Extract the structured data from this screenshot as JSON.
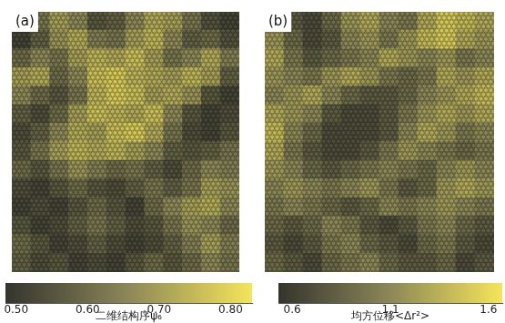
{
  "chart_data": [
    {
      "type": "heatmap",
      "title": "(a)",
      "cells": [
        [
          0.55,
          0.62,
          0.7,
          0.66,
          0.56,
          0.58,
          0.66,
          0.72,
          0.7,
          0.62,
          0.55,
          0.52
        ],
        [
          0.52,
          0.58,
          0.68,
          0.72,
          0.64,
          0.62,
          0.7,
          0.74,
          0.66,
          0.58,
          0.6,
          0.55
        ],
        [
          0.6,
          0.66,
          0.62,
          0.7,
          0.74,
          0.72,
          0.76,
          0.7,
          0.62,
          0.66,
          0.72,
          0.64
        ],
        [
          0.7,
          0.72,
          0.6,
          0.66,
          0.76,
          0.78,
          0.74,
          0.72,
          0.7,
          0.74,
          0.7,
          0.58
        ],
        [
          0.66,
          0.6,
          0.56,
          0.62,
          0.74,
          0.78,
          0.76,
          0.7,
          0.72,
          0.68,
          0.56,
          0.52
        ],
        [
          0.58,
          0.54,
          0.6,
          0.7,
          0.76,
          0.74,
          0.72,
          0.76,
          0.66,
          0.56,
          0.52,
          0.54
        ],
        [
          0.54,
          0.58,
          0.66,
          0.72,
          0.7,
          0.76,
          0.78,
          0.72,
          0.62,
          0.54,
          0.52,
          0.56
        ],
        [
          0.56,
          0.62,
          0.7,
          0.74,
          0.72,
          0.74,
          0.7,
          0.66,
          0.58,
          0.56,
          0.58,
          0.62
        ],
        [
          0.6,
          0.56,
          0.62,
          0.68,
          0.64,
          0.6,
          0.62,
          0.58,
          0.54,
          0.6,
          0.66,
          0.64
        ],
        [
          0.54,
          0.52,
          0.56,
          0.6,
          0.56,
          0.54,
          0.58,
          0.62,
          0.58,
          0.62,
          0.7,
          0.68
        ],
        [
          0.52,
          0.54,
          0.52,
          0.56,
          0.6,
          0.56,
          0.52,
          0.6,
          0.66,
          0.7,
          0.72,
          0.66
        ],
        [
          0.56,
          0.52,
          0.54,
          0.58,
          0.62,
          0.58,
          0.54,
          0.56,
          0.62,
          0.68,
          0.66,
          0.6
        ],
        [
          0.6,
          0.56,
          0.52,
          0.54,
          0.58,
          0.54,
          0.52,
          0.54,
          0.58,
          0.64,
          0.7,
          0.64
        ],
        [
          0.58,
          0.54,
          0.56,
          0.52,
          0.54,
          0.52,
          0.56,
          0.6,
          0.56,
          0.6,
          0.66,
          0.62
        ]
      ],
      "colorbar": {
        "title": "二维结构序ψ₆",
        "range": [
          0.485,
          0.83
        ],
        "ticks": [
          {
            "value": 0.5,
            "label": "0.50"
          },
          {
            "value": 0.6,
            "label": "0.60"
          },
          {
            "value": 0.7,
            "label": "0.70"
          },
          {
            "value": 0.8,
            "label": "0.80"
          }
        ]
      }
    },
    {
      "type": "heatmap",
      "title": "(b)",
      "cells": [
        [
          1.1,
          0.8,
          0.7,
          0.9,
          1.2,
          1.3,
          1.1,
          1.0,
          1.3,
          1.5,
          1.4,
          1.3
        ],
        [
          1.2,
          0.9,
          0.7,
          0.8,
          1.1,
          1.2,
          1.0,
          1.2,
          1.4,
          1.5,
          1.3,
          1.2
        ],
        [
          1.3,
          1.0,
          0.8,
          0.9,
          1.0,
          1.1,
          1.3,
          1.2,
          1.1,
          1.2,
          1.0,
          1.1
        ],
        [
          1.2,
          1.1,
          1.0,
          1.2,
          1.3,
          1.2,
          1.0,
          0.9,
          1.0,
          1.3,
          1.2,
          1.3
        ],
        [
          1.1,
          1.2,
          1.3,
          1.1,
          0.9,
          0.8,
          0.8,
          0.9,
          1.1,
          1.2,
          1.3,
          1.4
        ],
        [
          1.3,
          1.2,
          1.1,
          0.8,
          0.7,
          0.7,
          0.8,
          1.0,
          1.2,
          1.3,
          1.2,
          1.3
        ],
        [
          1.4,
          1.1,
          0.9,
          0.7,
          0.7,
          0.7,
          0.8,
          1.1,
          1.3,
          1.2,
          1.0,
          1.1
        ],
        [
          1.3,
          1.0,
          0.8,
          0.7,
          0.7,
          0.8,
          1.0,
          1.2,
          1.1,
          1.0,
          0.9,
          1.0
        ],
        [
          1.2,
          1.1,
          0.9,
          0.8,
          0.9,
          1.0,
          1.1,
          1.0,
          0.9,
          1.1,
          1.2,
          1.1
        ],
        [
          1.1,
          1.2,
          1.1,
          1.0,
          1.1,
          1.2,
          1.0,
          0.8,
          0.9,
          1.2,
          1.3,
          1.2
        ],
        [
          1.0,
          1.1,
          1.0,
          0.9,
          0.8,
          0.9,
          1.1,
          1.0,
          1.1,
          1.2,
          1.1,
          1.0
        ],
        [
          0.9,
          0.8,
          0.9,
          1.1,
          1.0,
          0.8,
          0.7,
          0.8,
          1.0,
          1.1,
          0.9,
          0.8
        ],
        [
          0.8,
          0.7,
          0.8,
          1.0,
          1.1,
          0.9,
          0.8,
          0.7,
          0.9,
          1.0,
          0.8,
          0.7
        ],
        [
          0.9,
          0.8,
          0.7,
          0.9,
          1.0,
          1.1,
          0.9,
          0.8,
          0.8,
          0.9,
          0.7,
          0.8
        ]
      ],
      "colorbar": {
        "title": "均方位移<Δr²>",
        "range": [
          0.53,
          1.67
        ],
        "ticks": [
          0.6,
          1.1,
          1.6
        ]
      }
    }
  ]
}
